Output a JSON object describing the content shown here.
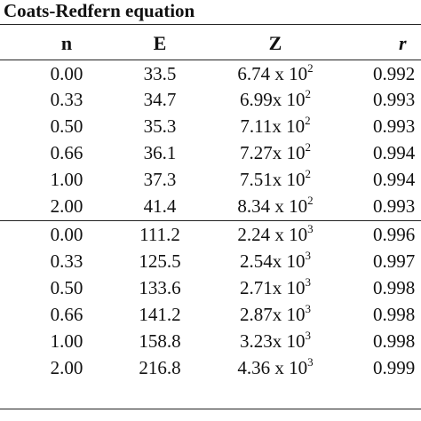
{
  "table": {
    "title": "Coats-Redfern equation",
    "headers": {
      "n": "n",
      "e": "E",
      "z": "Z",
      "r": "r"
    },
    "rows": [
      {
        "n": "0.00",
        "e": "33.5",
        "z_mant": "6.74 x 10",
        "z_exp": "2",
        "r": "0.992"
      },
      {
        "n": "0.33",
        "e": "34.7",
        "z_mant": "6.99x 10",
        "z_exp": "2",
        "r": "0.993"
      },
      {
        "n": "0.50",
        "e": "35.3",
        "z_mant": "7.11x 10",
        "z_exp": "2",
        "r": "0.993"
      },
      {
        "n": "0.66",
        "e": "36.1",
        "z_mant": "7.27x 10",
        "z_exp": "2",
        "r": "0.994"
      },
      {
        "n": "1.00",
        "e": "37.3",
        "z_mant": "7.51x 10",
        "z_exp": "2",
        "r": "0.994"
      },
      {
        "n": "2.00",
        "e": "41.4",
        "z_mant": "8.34 x 10",
        "z_exp": "2",
        "r": "0.993"
      },
      {
        "n": "0.00",
        "e": "111.2",
        "z_mant": "2.24 x 10",
        "z_exp": "3",
        "r": "0.996"
      },
      {
        "n": "0.33",
        "e": "125.5",
        "z_mant": "2.54x 10",
        "z_exp": "3",
        "r": "0.997"
      },
      {
        "n": "0.50",
        "e": "133.6",
        "z_mant": "2.71x 10",
        "z_exp": "3",
        "r": "0.998"
      },
      {
        "n": "0.66",
        "e": "141.2",
        "z_mant": "2.87x 10",
        "z_exp": "3",
        "r": "0.998"
      },
      {
        "n": "1.00",
        "e": "158.8",
        "z_mant": "3.23x 10",
        "z_exp": "3",
        "r": "0.998"
      },
      {
        "n": "2.00",
        "e": "216.8",
        "z_mant": "4.36 x 10",
        "z_exp": "3",
        "r": "0.999"
      }
    ]
  }
}
